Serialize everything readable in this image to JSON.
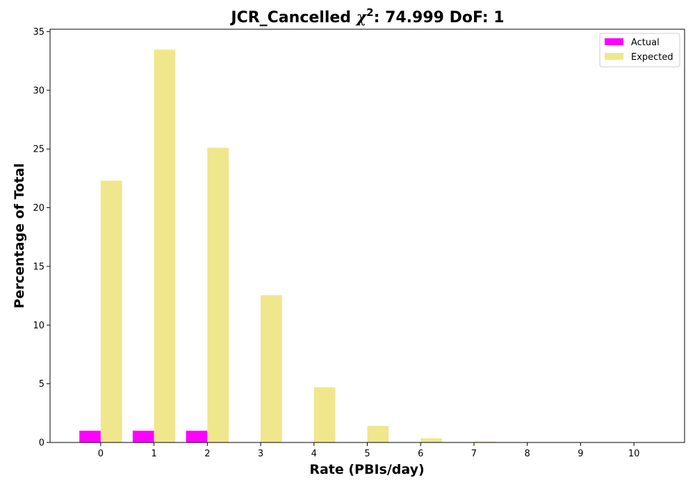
{
  "chart_data": {
    "type": "bar",
    "title": "JCR_Cancelled χ²: 74.999 DoF: 1",
    "title_parts": {
      "prefix": "JCR_Cancelled ",
      "chi": "χ",
      "sup": "2",
      "suffix": ": 74.999 DoF: 1"
    },
    "xlabel": "Rate (PBIs/day)",
    "ylabel": "Percentage of Total",
    "categories": [
      "0",
      "1",
      "2",
      "3",
      "4",
      "5",
      "6",
      "7",
      "8",
      "9",
      "10"
    ],
    "x": [
      0,
      1,
      2,
      3,
      4,
      5,
      6,
      7,
      8,
      9,
      10
    ],
    "xlim": [
      -0.95,
      10.95
    ],
    "ylim": [
      0,
      35.2
    ],
    "yticks": [
      0,
      5,
      10,
      15,
      20,
      25,
      30,
      35
    ],
    "grid": false,
    "legend_position": "top-right",
    "series": [
      {
        "name": "Actual",
        "color": "#ff00ff",
        "offset": -0.2,
        "width": 0.4,
        "values": [
          1.0,
          1.0,
          1.0,
          0,
          0,
          0,
          0,
          0,
          0,
          0,
          0
        ]
      },
      {
        "name": "Expected",
        "color": "#f0e68c",
        "offset": 0.2,
        "width": 0.4,
        "values": [
          22.3,
          33.46,
          25.1,
          12.55,
          4.71,
          1.41,
          0.35,
          0.08,
          0.02,
          0.0,
          0.0
        ]
      }
    ]
  }
}
